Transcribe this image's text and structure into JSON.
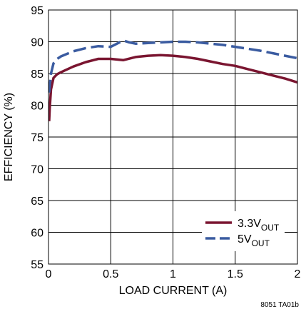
{
  "chart_data": {
    "type": "line",
    "xlabel": "LOAD CURRENT (A)",
    "ylabel": "EFFICIENCY (%)",
    "xlim": [
      0,
      2
    ],
    "ylim": [
      55,
      95
    ],
    "xticks": [
      "0",
      "0.5",
      "1",
      "1.5",
      "2"
    ],
    "xtick_values": [
      0,
      0.5,
      1,
      1.5,
      2
    ],
    "yticks": [
      "55",
      "60",
      "65",
      "70",
      "75",
      "80",
      "85",
      "90",
      "95"
    ],
    "ytick_values": [
      55,
      60,
      65,
      70,
      75,
      80,
      85,
      90,
      95
    ],
    "grid": true,
    "legend_position": "bottom-right",
    "footnote": "8051 TA01b",
    "series": [
      {
        "name_main": "3.3V",
        "name_sub": "OUT",
        "color": "#7a1530",
        "style": "solid",
        "x": [
          0.005,
          0.01,
          0.02,
          0.04,
          0.07,
          0.1,
          0.2,
          0.3,
          0.4,
          0.5,
          0.6,
          0.7,
          0.8,
          0.9,
          1.0,
          1.1,
          1.2,
          1.3,
          1.4,
          1.5,
          1.6,
          1.7,
          1.8,
          1.9,
          2.0
        ],
        "y": [
          77.5,
          79.5,
          82.5,
          84.3,
          84.9,
          85.2,
          86.1,
          86.8,
          87.3,
          87.3,
          87.1,
          87.6,
          87.8,
          87.9,
          87.8,
          87.6,
          87.3,
          86.9,
          86.5,
          86.2,
          85.7,
          85.2,
          84.7,
          84.2,
          83.6
        ]
      },
      {
        "name_main": "5V",
        "name_sub": "OUT",
        "color": "#3a5ba0",
        "style": "dashed",
        "x": [
          0.005,
          0.01,
          0.02,
          0.04,
          0.07,
          0.1,
          0.2,
          0.3,
          0.4,
          0.5,
          0.55,
          0.6,
          0.65,
          0.7,
          0.8,
          0.9,
          1.0,
          1.1,
          1.2,
          1.3,
          1.4,
          1.5,
          1.6,
          1.7,
          1.8,
          1.9,
          2.0
        ],
        "y": [
          82.0,
          83.0,
          85.0,
          86.6,
          87.3,
          87.7,
          88.5,
          89.0,
          89.3,
          89.2,
          89.7,
          90.2,
          89.9,
          89.7,
          89.8,
          89.9,
          90.0,
          90.0,
          89.9,
          89.7,
          89.5,
          89.2,
          88.9,
          88.6,
          88.2,
          87.8,
          87.4
        ]
      }
    ]
  }
}
